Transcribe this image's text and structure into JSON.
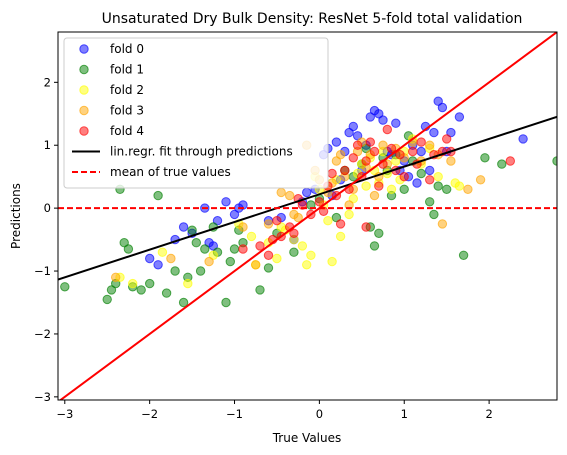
{
  "chart_data": {
    "type": "scatter",
    "title": "Unsaturated Dry Bulk Density: ResNet 5-fold total validation",
    "xlabel": "True Values",
    "ylabel": "Predictions",
    "xlim": [
      -3.08,
      2.8
    ],
    "ylim": [
      -3.05,
      2.8
    ],
    "xticks": [
      -3,
      -2,
      -1,
      0,
      1,
      2
    ],
    "yticks": [
      -3,
      -2,
      -1,
      0,
      1,
      2
    ],
    "xtick_labels": [
      "−3",
      "−2",
      "−1",
      "0",
      "1",
      "2"
    ],
    "ytick_labels": [
      "−3",
      "−2",
      "−1",
      "0",
      "1",
      "2"
    ],
    "grid": false,
    "legend_placement": "upper-left",
    "series": [
      {
        "name": "fold 0",
        "color": "#0000ff",
        "points": [
          [
            -2.0,
            -0.8
          ],
          [
            -1.9,
            -0.9
          ],
          [
            -1.7,
            -0.5
          ],
          [
            -1.6,
            -0.3
          ],
          [
            -1.5,
            -0.4
          ],
          [
            -1.35,
            0.0
          ],
          [
            -1.3,
            -0.55
          ],
          [
            -1.25,
            -0.6
          ],
          [
            -1.2,
            -0.2
          ],
          [
            -1.1,
            0.1
          ],
          [
            -1.0,
            -0.1
          ],
          [
            -0.95,
            0.0
          ],
          [
            -0.9,
            0.05
          ],
          [
            -0.6,
            -0.2
          ],
          [
            -0.45,
            -0.15
          ],
          [
            -0.3,
            -0.5
          ],
          [
            -0.15,
            0.25
          ],
          [
            -0.05,
            0.3
          ],
          [
            0.05,
            0.85
          ],
          [
            0.1,
            0.95
          ],
          [
            0.2,
            1.05
          ],
          [
            0.3,
            0.9
          ],
          [
            0.35,
            1.2
          ],
          [
            0.4,
            1.3
          ],
          [
            0.45,
            1.15
          ],
          [
            0.55,
            1.0
          ],
          [
            0.6,
            1.45
          ],
          [
            0.65,
            1.55
          ],
          [
            0.7,
            1.5
          ],
          [
            0.75,
            1.4
          ],
          [
            0.8,
            0.9
          ],
          [
            0.85,
            0.85
          ],
          [
            0.9,
            1.35
          ],
          [
            0.95,
            0.6
          ],
          [
            1.0,
            0.75
          ],
          [
            1.05,
            0.5
          ],
          [
            1.1,
            1.0
          ],
          [
            1.15,
            0.4
          ],
          [
            1.2,
            0.9
          ],
          [
            1.25,
            1.3
          ],
          [
            1.3,
            0.6
          ],
          [
            1.35,
            1.2
          ],
          [
            1.4,
            1.7
          ],
          [
            1.45,
            1.6
          ],
          [
            1.5,
            0.9
          ],
          [
            1.55,
            1.2
          ],
          [
            1.65,
            1.45
          ],
          [
            2.4,
            1.1
          ],
          [
            0.25,
            0.45
          ],
          [
            0.5,
            0.6
          ],
          [
            0.15,
            0.2
          ],
          [
            -0.2,
            0.1
          ]
        ]
      },
      {
        "name": "fold 1",
        "color": "#008000",
        "points": [
          [
            -3.0,
            -1.25
          ],
          [
            -2.5,
            -1.45
          ],
          [
            -2.45,
            -1.3
          ],
          [
            -2.4,
            -1.2
          ],
          [
            -2.35,
            0.3
          ],
          [
            -2.3,
            -0.55
          ],
          [
            -2.25,
            -0.65
          ],
          [
            -2.2,
            -1.25
          ],
          [
            -2.1,
            -1.3
          ],
          [
            -2.0,
            -1.2
          ],
          [
            -1.9,
            0.2
          ],
          [
            -1.8,
            -1.35
          ],
          [
            -1.7,
            -1.0
          ],
          [
            -1.6,
            -1.5
          ],
          [
            -1.55,
            -1.1
          ],
          [
            -1.5,
            -0.35
          ],
          [
            -1.45,
            -0.55
          ],
          [
            -1.4,
            -1.0
          ],
          [
            -1.35,
            -0.65
          ],
          [
            -1.25,
            -0.3
          ],
          [
            -1.2,
            -0.7
          ],
          [
            -1.1,
            -1.5
          ],
          [
            -1.05,
            -0.85
          ],
          [
            -1.0,
            -0.65
          ],
          [
            -0.95,
            -0.35
          ],
          [
            -0.9,
            -0.55
          ],
          [
            -0.7,
            -1.3
          ],
          [
            -0.6,
            -0.95
          ],
          [
            -0.5,
            -0.4
          ],
          [
            -0.3,
            -0.7
          ],
          [
            -0.1,
            0.05
          ],
          [
            0.0,
            0.15
          ],
          [
            0.2,
            -0.15
          ],
          [
            0.3,
            0.6
          ],
          [
            0.4,
            0.5
          ],
          [
            0.5,
            0.7
          ],
          [
            0.6,
            -0.3
          ],
          [
            0.65,
            -0.6
          ],
          [
            0.7,
            -0.4
          ],
          [
            0.75,
            0.8
          ],
          [
            0.8,
            0.6
          ],
          [
            0.85,
            0.2
          ],
          [
            0.9,
            0.85
          ],
          [
            1.0,
            0.3
          ],
          [
            1.1,
            0.75
          ],
          [
            1.2,
            0.55
          ],
          [
            1.3,
            0.1
          ],
          [
            1.35,
            -0.1
          ],
          [
            1.4,
            0.35
          ],
          [
            1.5,
            0.3
          ],
          [
            1.7,
            -0.75
          ],
          [
            1.95,
            0.8
          ],
          [
            2.15,
            0.7
          ],
          [
            2.8,
            0.75
          ],
          [
            0.55,
            0.95
          ],
          [
            1.05,
            1.15
          ]
        ]
      },
      {
        "name": "fold 2",
        "color": "#ffff00",
        "points": [
          [
            -2.35,
            -1.1
          ],
          [
            -2.2,
            -1.2
          ],
          [
            -1.85,
            -0.7
          ],
          [
            -1.55,
            -1.2
          ],
          [
            -1.25,
            -0.75
          ],
          [
            -0.95,
            -0.25
          ],
          [
            -0.8,
            -0.45
          ],
          [
            -0.75,
            -0.9
          ],
          [
            -0.6,
            -0.55
          ],
          [
            -0.5,
            -0.8
          ],
          [
            -0.45,
            -0.3
          ],
          [
            -0.4,
            -0.35
          ],
          [
            -0.3,
            -0.5
          ],
          [
            -0.2,
            -0.6
          ],
          [
            -0.15,
            -0.9
          ],
          [
            -0.1,
            -0.75
          ],
          [
            -0.05,
            0.5
          ],
          [
            0.0,
            0.3
          ],
          [
            0.05,
            0.05
          ],
          [
            0.1,
            -0.2
          ],
          [
            0.2,
            0.45
          ],
          [
            0.25,
            -0.45
          ],
          [
            0.35,
            -0.1
          ],
          [
            0.4,
            0.15
          ],
          [
            0.45,
            0.55
          ],
          [
            0.5,
            0.7
          ],
          [
            0.55,
            0.35
          ],
          [
            0.6,
            0.8
          ],
          [
            0.65,
            0.6
          ],
          [
            0.7,
            0.4
          ],
          [
            0.75,
            0.9
          ],
          [
            0.8,
            0.55
          ],
          [
            0.85,
            0.3
          ],
          [
            0.9,
            0.75
          ],
          [
            0.95,
            0.45
          ],
          [
            1.0,
            0.9
          ],
          [
            1.1,
            1.1
          ],
          [
            1.2,
            0.7
          ],
          [
            1.3,
            0.95
          ],
          [
            1.4,
            0.5
          ],
          [
            1.6,
            0.4
          ],
          [
            1.65,
            0.35
          ],
          [
            0.15,
            -0.85
          ]
        ]
      },
      {
        "name": "fold 3",
        "color": "#ffa500",
        "points": [
          [
            -2.4,
            -1.1
          ],
          [
            -1.75,
            -0.8
          ],
          [
            -1.3,
            -0.85
          ],
          [
            -0.9,
            -0.3
          ],
          [
            -0.75,
            -0.9
          ],
          [
            -0.6,
            -0.25
          ],
          [
            -0.45,
            0.25
          ],
          [
            -0.35,
            0.2
          ],
          [
            -0.3,
            -0.1
          ],
          [
            -0.25,
            -0.15
          ],
          [
            -0.15,
            1.0
          ],
          [
            -0.05,
            0.6
          ],
          [
            0.0,
            0.45
          ],
          [
            0.1,
            0.25
          ],
          [
            0.15,
            0.4
          ],
          [
            0.2,
            0.75
          ],
          [
            0.3,
            0.5
          ],
          [
            0.35,
            0.05
          ],
          [
            0.4,
            0.3
          ],
          [
            0.45,
            0.9
          ],
          [
            0.5,
            1.05
          ],
          [
            0.55,
            0.65
          ],
          [
            0.6,
            0.85
          ],
          [
            0.7,
            0.5
          ],
          [
            0.75,
            1.0
          ],
          [
            0.8,
            0.7
          ],
          [
            0.9,
            0.95
          ],
          [
            1.0,
            0.8
          ],
          [
            1.1,
            1.05
          ],
          [
            1.2,
            0.75
          ],
          [
            1.3,
            1.0
          ],
          [
            1.4,
            0.85
          ],
          [
            1.45,
            -0.25
          ],
          [
            1.55,
            0.75
          ],
          [
            1.75,
            0.3
          ],
          [
            1.9,
            0.45
          ],
          [
            0.25,
            0.85
          ],
          [
            0.65,
            0.2
          ]
        ]
      },
      {
        "name": "fold 4",
        "color": "#ff0000",
        "points": [
          [
            -0.9,
            -0.65
          ],
          [
            -0.7,
            -0.6
          ],
          [
            -0.6,
            -0.75
          ],
          [
            -0.55,
            -0.5
          ],
          [
            -0.5,
            -0.2
          ],
          [
            -0.45,
            -0.45
          ],
          [
            -0.35,
            -0.3
          ],
          [
            -0.25,
            0.15
          ],
          [
            -0.2,
            0.05
          ],
          [
            -0.1,
            -0.1
          ],
          [
            0.0,
            0.1
          ],
          [
            0.05,
            -0.05
          ],
          [
            0.1,
            0.35
          ],
          [
            0.15,
            0.55
          ],
          [
            0.2,
            0.2
          ],
          [
            0.25,
            -0.25
          ],
          [
            0.3,
            0.6
          ],
          [
            0.35,
            0.3
          ],
          [
            0.4,
            0.8
          ],
          [
            0.45,
            1.0
          ],
          [
            0.5,
            0.5
          ],
          [
            0.55,
            0.75
          ],
          [
            0.6,
            1.05
          ],
          [
            0.65,
            0.9
          ],
          [
            0.7,
            0.35
          ],
          [
            0.75,
            0.7
          ],
          [
            0.8,
            1.25
          ],
          [
            0.85,
            0.95
          ],
          [
            0.9,
            0.6
          ],
          [
            0.95,
            0.85
          ],
          [
            1.0,
            0.5
          ],
          [
            1.1,
            0.9
          ],
          [
            1.15,
            0.7
          ],
          [
            1.2,
            1.05
          ],
          [
            1.3,
            0.45
          ],
          [
            1.35,
            0.85
          ],
          [
            1.45,
            0.9
          ],
          [
            1.5,
            1.1
          ],
          [
            1.55,
            0.9
          ],
          [
            2.25,
            0.75
          ],
          [
            -0.3,
            -0.4
          ],
          [
            0.55,
            -0.3
          ]
        ]
      }
    ],
    "lines": [
      {
        "name": "lin.regr. fit through predictions",
        "color": "#000000",
        "style": "solid",
        "slope": 0.44,
        "intercept": 0.22
      },
      {
        "name": "mean of true values",
        "color": "#ff0000",
        "style": "dashed",
        "y": 0.0
      },
      {
        "name": "identity",
        "color": "#ff0000",
        "style": "solid",
        "slope": 1.0,
        "intercept": 0.0
      }
    ]
  }
}
